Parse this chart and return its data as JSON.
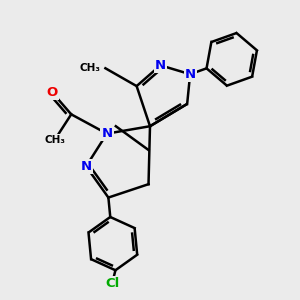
{
  "background_color": "#ebebeb",
  "bond_color": "#000000",
  "bond_width": 1.8,
  "atom_colors": {
    "N": "#0000ee",
    "O": "#ee0000",
    "Cl": "#00aa00",
    "C": "#000000"
  },
  "fig_size": [
    3.0,
    3.0
  ],
  "dpi": 100,
  "xlim": [
    0,
    10
  ],
  "ylim": [
    0,
    10
  ]
}
